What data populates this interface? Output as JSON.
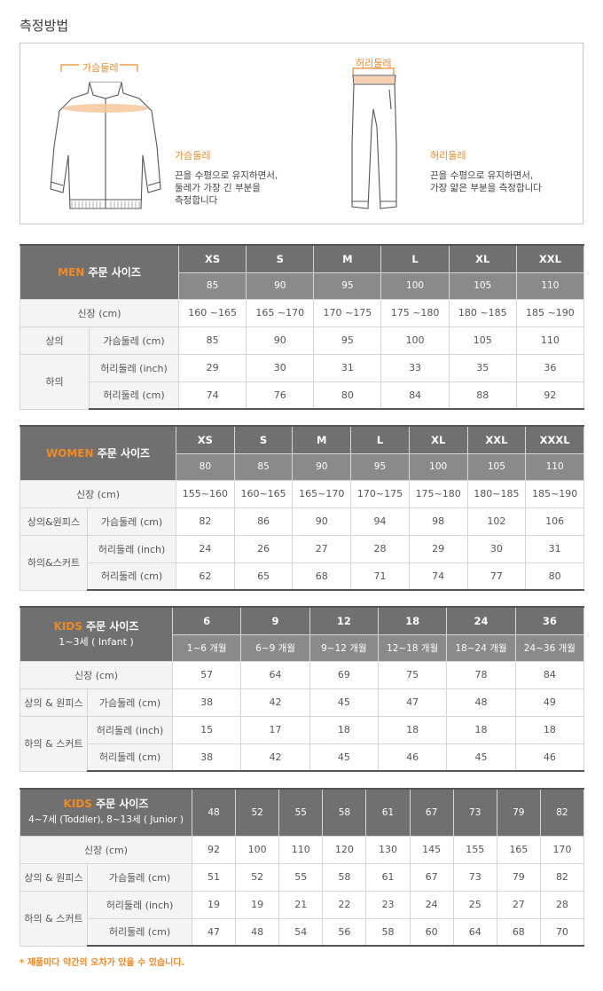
{
  "page_title": "측정방법",
  "measure": {
    "chest_label": "가슴둘레",
    "waist_label": "허리둘레",
    "chest_desc_head": "가슴둘레",
    "chest_desc_l1": "끈을 수평으로 유지하면서,",
    "chest_desc_l2": "둘레가 가장 긴 부분을",
    "chest_desc_l3": "측정합니다",
    "waist_desc_head": "허리둘레",
    "waist_desc_l1": "끈을 수평으로 유지하면서,",
    "waist_desc_l2": "가장 얇은 부분을 측정합니다"
  },
  "men": {
    "title_a": "MEN",
    "title_b": "주문 사이즈",
    "sizes": [
      "XS",
      "S",
      "M",
      "L",
      "XL",
      "XXL"
    ],
    "nums": [
      "85",
      "90",
      "95",
      "100",
      "105",
      "110"
    ],
    "height_label": "신장 (cm)",
    "height": [
      "160 ~165",
      "165 ~170",
      "170 ~175",
      "175 ~180",
      "180 ~185",
      "185 ~190"
    ],
    "top_group": "상의",
    "chest_label": "가슴둘레 (cm)",
    "chest": [
      "85",
      "90",
      "95",
      "100",
      "105",
      "110"
    ],
    "bottom_group": "하의",
    "waist_inch_label": "허리둘레 (inch)",
    "waist_inch": [
      "29",
      "30",
      "31",
      "33",
      "35",
      "36"
    ],
    "waist_cm_label": "허리둘레 (cm)",
    "waist_cm": [
      "74",
      "76",
      "80",
      "84",
      "88",
      "92"
    ]
  },
  "women": {
    "title_a": "WOMEN",
    "title_b": "주문 사이즈",
    "sizes": [
      "XS",
      "S",
      "M",
      "L",
      "XL",
      "XXL",
      "XXXL"
    ],
    "nums": [
      "80",
      "85",
      "90",
      "95",
      "100",
      "105",
      "110"
    ],
    "height_label": "신장 (cm)",
    "height": [
      "155~160",
      "160~165",
      "165~170",
      "170~175",
      "175~180",
      "180~185",
      "185~190"
    ],
    "top_group": "상의&원피스",
    "chest_label": "가슴둘레 (cm)",
    "chest": [
      "82",
      "86",
      "90",
      "94",
      "98",
      "102",
      "106"
    ],
    "bottom_group": "하의&스커트",
    "waist_inch_label": "허리둘레 (inch)",
    "waist_inch": [
      "24",
      "26",
      "27",
      "28",
      "29",
      "30",
      "31"
    ],
    "waist_cm_label": "허리둘레 (cm)",
    "waist_cm": [
      "62",
      "65",
      "68",
      "71",
      "74",
      "77",
      "80"
    ]
  },
  "kids1": {
    "title_a": "KIDS",
    "title_b": "주문 사이즈",
    "title_c": "1~3세 ( Infant )",
    "sizes": [
      "6",
      "9",
      "12",
      "18",
      "24",
      "36"
    ],
    "months": [
      "1~6 개월",
      "6~9 개월",
      "9~12 개월",
      "12~18 개월",
      "18~24 개월",
      "24~36 개월"
    ],
    "height_label": "신장 (cm)",
    "height": [
      "57",
      "64",
      "69",
      "75",
      "78",
      "84"
    ],
    "top_group": "상의 & 원피스",
    "chest_label": "가슴둘레 (cm)",
    "chest": [
      "38",
      "42",
      "45",
      "47",
      "48",
      "49"
    ],
    "bottom_group": "하의 & 스커트",
    "waist_inch_label": "허리둘레 (inch)",
    "waist_inch": [
      "15",
      "17",
      "18",
      "18",
      "18",
      "18"
    ],
    "waist_cm_label": "허리둘레 (cm)",
    "waist_cm": [
      "38",
      "42",
      "45",
      "46",
      "45",
      "46"
    ]
  },
  "kids2": {
    "title_a": "KIDS",
    "title_b": "주문 사이즈",
    "title_c": "4~7세 (Toddler), 8~13세 ( Junior )",
    "sizes": [
      "48",
      "52",
      "55",
      "58",
      "61",
      "67",
      "73",
      "79",
      "82"
    ],
    "height_label": "신장 (cm)",
    "height": [
      "92",
      "100",
      "110",
      "120",
      "130",
      "145",
      "155",
      "165",
      "170"
    ],
    "top_group": "상의 & 원피스",
    "chest_label": "가슴둘레 (cm)",
    "chest": [
      "51",
      "52",
      "55",
      "58",
      "61",
      "67",
      "73",
      "79",
      "82"
    ],
    "bottom_group": "하의 & 스커트",
    "waist_inch_label": "허리둘레 (inch)",
    "waist_inch": [
      "19",
      "19",
      "21",
      "22",
      "23",
      "24",
      "25",
      "27",
      "28"
    ],
    "waist_cm_label": "허리둘레 (cm)",
    "waist_cm": [
      "47",
      "48",
      "54",
      "56",
      "58",
      "60",
      "64",
      "68",
      "70"
    ]
  },
  "note": "* 제품마다 약간의 오차가 있을 수 있습니다."
}
